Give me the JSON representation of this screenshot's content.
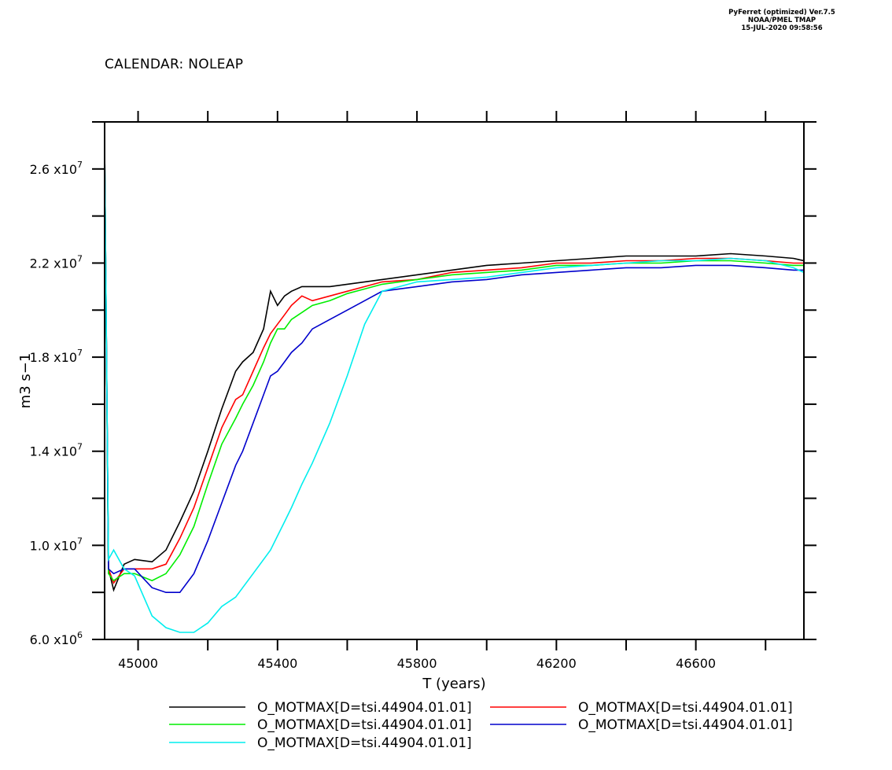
{
  "header": {
    "line1": "PyFerret (optimized) Ver.7.5",
    "line2": "NOAA/PMEL TMAP",
    "line3": "15-JUL-2020 09:58:56"
  },
  "calendar_label": "CALENDAR: NOLEAP",
  "chart_data": {
    "type": "line",
    "xlabel": "T (years)",
    "ylabel": "m3 s−1",
    "xlim": [
      44904,
      46910
    ],
    "ylim": [
      6000000,
      28000000
    ],
    "x_ticks": [
      45000,
      45400,
      45800,
      46200,
      46600
    ],
    "y_ticks": [
      {
        "value": 6000000,
        "label": "6.0 x10",
        "exp": "6"
      },
      {
        "value": 10000000,
        "label": "1.0 x10",
        "exp": "7"
      },
      {
        "value": 14000000,
        "label": "1.4 x10",
        "exp": "7"
      },
      {
        "value": 18000000,
        "label": "1.8 x10",
        "exp": "7"
      },
      {
        "value": 22000000,
        "label": "2.2 x10",
        "exp": "7"
      },
      {
        "value": 26000000,
        "label": "2.6 x10",
        "exp": "7"
      }
    ],
    "series": [
      {
        "name": "O_MOTMAX[D=tsi.44904.01.01]",
        "color": "#000000",
        "x": [
          44904,
          44915,
          44930,
          44960,
          44990,
          45040,
          45080,
          45120,
          45160,
          45200,
          45240,
          45280,
          45300,
          45330,
          45360,
          45380,
          45400,
          45420,
          45440,
          45470,
          45500,
          45550,
          45600,
          45650,
          45700,
          45800,
          45900,
          46000,
          46100,
          46200,
          46300,
          46400,
          46500,
          46600,
          46700,
          46800,
          46880,
          46910
        ],
        "y": [
          27000000,
          9000000,
          8100000,
          9200000,
          9400000,
          9300000,
          9800000,
          11000000,
          12300000,
          14000000,
          15800000,
          17400000,
          17800000,
          18200000,
          19200000,
          20800000,
          20200000,
          20600000,
          20800000,
          21000000,
          21000000,
          21000000,
          21100000,
          21200000,
          21300000,
          21500000,
          21700000,
          21900000,
          22000000,
          22100000,
          22200000,
          22300000,
          22300000,
          22300000,
          22400000,
          22300000,
          22200000,
          22100000
        ]
      },
      {
        "name": "O_MOTMAX[D=tsi.44904.01.01]",
        "color": "#ff0000",
        "x": [
          44904,
          44915,
          44930,
          44960,
          44990,
          45040,
          45080,
          45120,
          45160,
          45200,
          45240,
          45280,
          45300,
          45330,
          45360,
          45380,
          45400,
          45420,
          45440,
          45470,
          45500,
          45550,
          45600,
          45650,
          45700,
          45800,
          45900,
          46000,
          46100,
          46200,
          46300,
          46400,
          46500,
          46600,
          46700,
          46800,
          46880,
          46910
        ],
        "y": [
          27000000,
          9000000,
          8400000,
          9000000,
          9000000,
          9000000,
          9200000,
          10300000,
          11600000,
          13300000,
          15000000,
          16200000,
          16400000,
          17400000,
          18400000,
          19000000,
          19400000,
          19800000,
          20200000,
          20600000,
          20400000,
          20600000,
          20800000,
          21000000,
          21200000,
          21300000,
          21600000,
          21700000,
          21800000,
          22000000,
          22000000,
          22100000,
          22100000,
          22200000,
          22200000,
          22100000,
          22000000,
          22000000
        ]
      },
      {
        "name": "O_MOTMAX[D=tsi.44904.01.01]",
        "color": "#00ee00",
        "x": [
          44904,
          44915,
          44930,
          44960,
          44990,
          45040,
          45080,
          45120,
          45160,
          45200,
          45240,
          45280,
          45300,
          45330,
          45360,
          45380,
          45400,
          45420,
          45440,
          45470,
          45500,
          45550,
          45600,
          45650,
          45700,
          45800,
          45900,
          46000,
          46100,
          46200,
          46300,
          46400,
          46500,
          46600,
          46700,
          46800,
          46880,
          46910
        ],
        "y": [
          27000000,
          8800000,
          8500000,
          8800000,
          8800000,
          8500000,
          8800000,
          9600000,
          10800000,
          12600000,
          14300000,
          15400000,
          16000000,
          16800000,
          17800000,
          18600000,
          19200000,
          19200000,
          19600000,
          19900000,
          20200000,
          20400000,
          20700000,
          20900000,
          21100000,
          21300000,
          21500000,
          21600000,
          21700000,
          21900000,
          21900000,
          22000000,
          22000000,
          22100000,
          22100000,
          22000000,
          21900000,
          21900000
        ]
      },
      {
        "name": "O_MOTMAX[D=tsi.44904.01.01]",
        "color": "#0000cc",
        "x": [
          44904,
          44915,
          44930,
          44960,
          44990,
          45040,
          45080,
          45120,
          45160,
          45200,
          45240,
          45280,
          45300,
          45330,
          45360,
          45380,
          45400,
          45420,
          45440,
          45470,
          45500,
          45550,
          45600,
          45650,
          45700,
          45800,
          45900,
          46000,
          46100,
          46200,
          46300,
          46400,
          46500,
          46600,
          46700,
          46800,
          46880,
          46910
        ],
        "y": [
          27000000,
          9000000,
          8800000,
          9000000,
          9000000,
          8200000,
          8000000,
          8000000,
          8800000,
          10200000,
          11800000,
          13400000,
          14000000,
          15200000,
          16400000,
          17200000,
          17400000,
          17800000,
          18200000,
          18600000,
          19200000,
          19600000,
          20000000,
          20400000,
          20800000,
          21000000,
          21200000,
          21300000,
          21500000,
          21600000,
          21700000,
          21800000,
          21800000,
          21900000,
          21900000,
          21800000,
          21700000,
          21700000
        ]
      },
      {
        "name": "O_MOTMAX[D=tsi.44904.01.01]",
        "color": "#00eeee",
        "x": [
          44904,
          44915,
          44930,
          44960,
          44990,
          45040,
          45080,
          45120,
          45160,
          45200,
          45240,
          45280,
          45300,
          45330,
          45360,
          45380,
          45400,
          45420,
          45440,
          45470,
          45500,
          45550,
          45600,
          45650,
          45700,
          45800,
          45900,
          46000,
          46100,
          46200,
          46300,
          46400,
          46500,
          46600,
          46700,
          46800,
          46880,
          46910
        ],
        "y": [
          27000000,
          9400000,
          9800000,
          9000000,
          8700000,
          7000000,
          6500000,
          6300000,
          6300000,
          6700000,
          7400000,
          7800000,
          8200000,
          8800000,
          9400000,
          9800000,
          10400000,
          11000000,
          11600000,
          12600000,
          13500000,
          15200000,
          17200000,
          19400000,
          20800000,
          21200000,
          21300000,
          21400000,
          21600000,
          21800000,
          21900000,
          22000000,
          22100000,
          22100000,
          22200000,
          22100000,
          21800000,
          21600000
        ]
      }
    ]
  }
}
